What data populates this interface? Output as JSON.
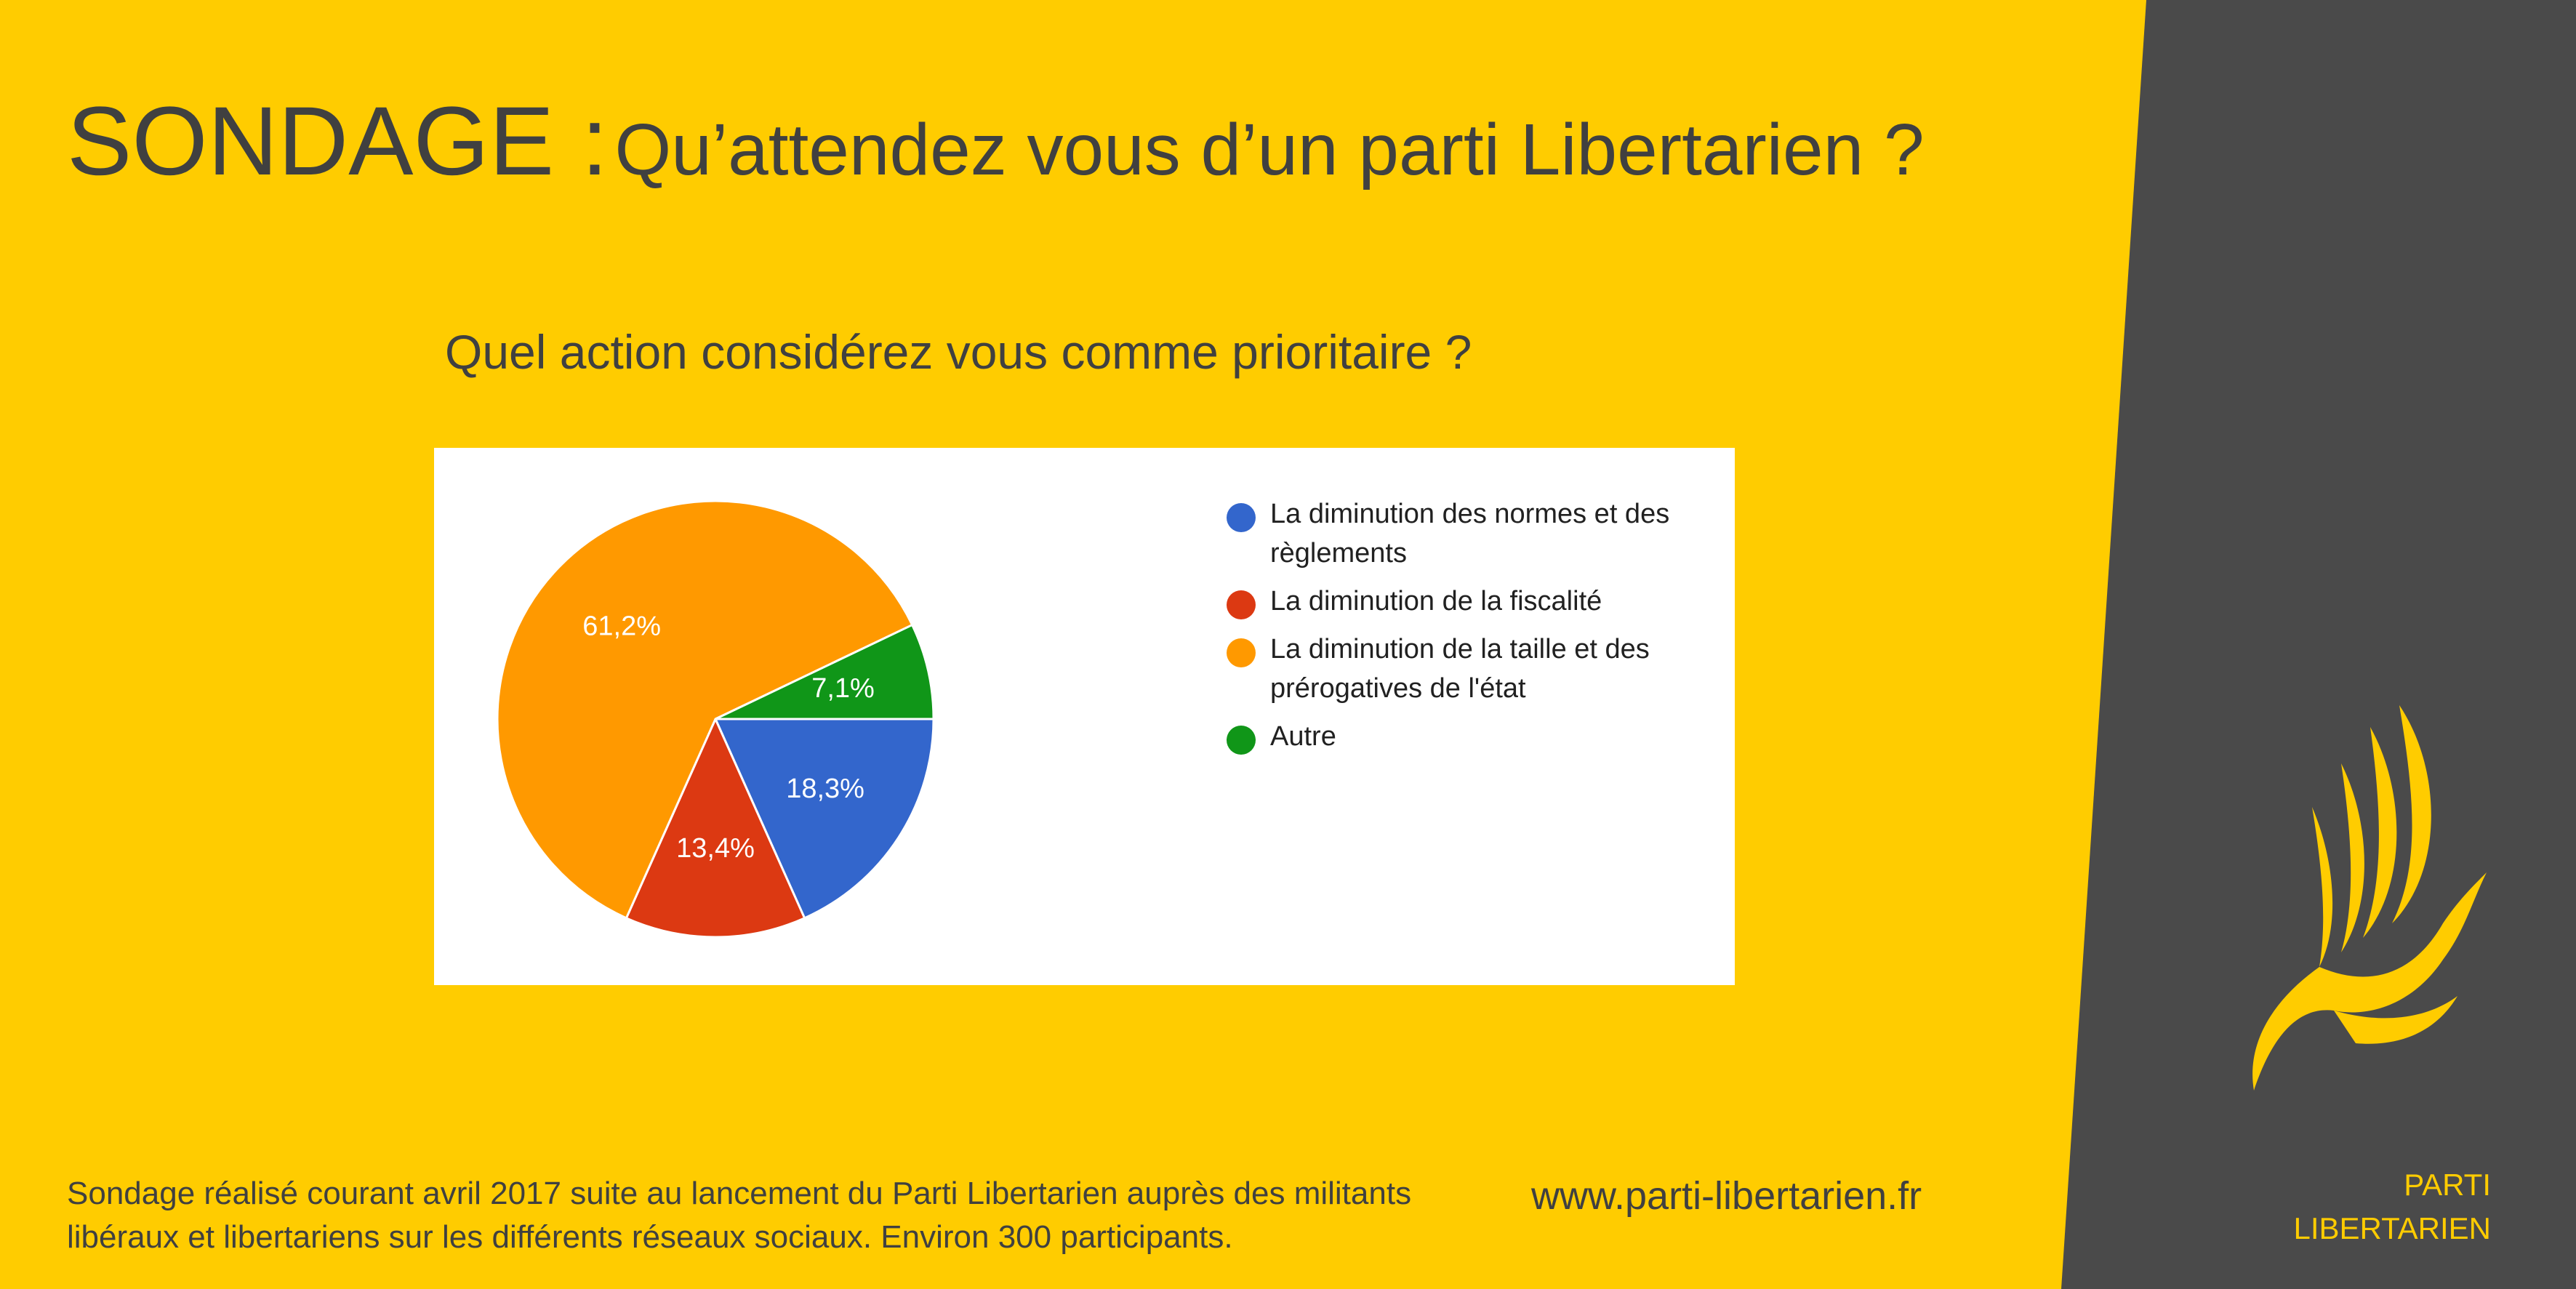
{
  "header": {
    "title_main": "SONDAGE :",
    "title_sub": "Qu’attendez vous d’un parti Libertarien ?"
  },
  "question": "Quel action considérez vous comme prioritaire ?",
  "colors": {
    "background": "#FFCC00",
    "side_panel": "#4A4A4A",
    "text": "#404040",
    "brand": "#FFCC00"
  },
  "chart_data": {
    "type": "pie",
    "title": "Quel action considérez vous comme prioritaire ?",
    "legend_position": "right",
    "slices": [
      {
        "label": "La diminution des normes et des règlements",
        "value": 18.3,
        "display": "18,3%",
        "color": "#3366CC"
      },
      {
        "label": "La diminution de la fiscalité",
        "value": 13.4,
        "display": "13,4%",
        "color": "#DC3912"
      },
      {
        "label": "La diminution de la taille et des prérogatives de l'état",
        "value": 61.2,
        "display": "61,2%",
        "color": "#FF9900"
      },
      {
        "label": "Autre",
        "value": 7.1,
        "display": "7,1%",
        "color": "#109618"
      }
    ]
  },
  "footer": {
    "note_line1": "Sondage réalisé courant avril 2017 suite au lancement du Parti Libertarien auprès des militants",
    "note_line2": "libéraux et libertariens sur les différents réseaux sociaux. Environ 300 participants.",
    "website": "www.parti-libertarien.fr"
  },
  "brand": {
    "logo_icon": "eagle-logo-icon",
    "line1": "PARTI",
    "line2": "LIBERTARIEN"
  }
}
